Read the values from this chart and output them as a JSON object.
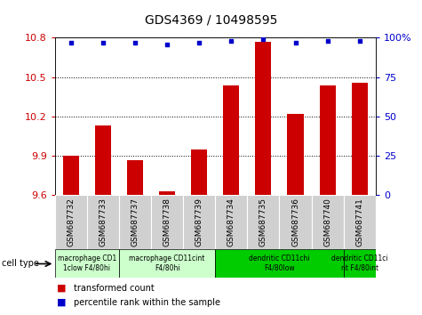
{
  "title": "GDS4369 / 10498595",
  "samples": [
    "GSM687732",
    "GSM687733",
    "GSM687737",
    "GSM687738",
    "GSM687739",
    "GSM687734",
    "GSM687735",
    "GSM687736",
    "GSM687740",
    "GSM687741"
  ],
  "bar_values": [
    9.9,
    10.13,
    9.87,
    9.63,
    9.95,
    10.44,
    10.77,
    10.22,
    10.44,
    10.46
  ],
  "percentile_values": [
    97,
    97,
    97,
    96,
    97,
    98,
    99,
    97,
    98,
    98
  ],
  "ylim_left": [
    9.6,
    10.8
  ],
  "ylim_right": [
    0,
    100
  ],
  "yticks_left": [
    9.6,
    9.9,
    10.2,
    10.5,
    10.8
  ],
  "yticks_right": [
    0,
    25,
    50,
    75,
    100
  ],
  "ytick_labels_right": [
    "0",
    "25",
    "50",
    "75",
    "100%"
  ],
  "bar_color": "#cc0000",
  "dot_color": "#0000cc",
  "cell_types": [
    {
      "label": "macrophage CD1\n1clow F4/80hi",
      "start": 0,
      "end": 2,
      "color": "#ccffcc"
    },
    {
      "label": "macrophage CD11cint\nF4/80hi",
      "start": 2,
      "end": 5,
      "color": "#ccffcc"
    },
    {
      "label": "dendritic CD11chi\nF4/80low",
      "start": 5,
      "end": 9,
      "color": "#00cc00"
    },
    {
      "label": "dendritic CD11ci\nnt F4/80int",
      "start": 9,
      "end": 10,
      "color": "#00cc00"
    }
  ],
  "legend_bar_label": "transformed count",
  "legend_dot_label": "percentile rank within the sample",
  "cell_type_label": "cell type",
  "grid_color": "#000000",
  "background_color": "#ffffff"
}
